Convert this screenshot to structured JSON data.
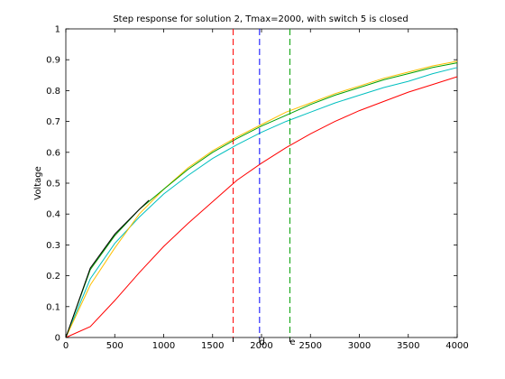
{
  "chart_data": {
    "type": "line",
    "title": "Step response for solution 2, Tmax=2000, with switch 5 is closed",
    "xlabel": "",
    "ylabel": "Voltage",
    "xlim": [
      0,
      4000
    ],
    "ylim": [
      0,
      1
    ],
    "grid": false,
    "x_ticks": [
      0,
      500,
      1000,
      1500,
      2000,
      2500,
      3000,
      3500,
      4000
    ],
    "y_ticks": [
      0,
      0.1,
      0.2,
      0.3,
      0.4,
      0.5,
      0.6,
      0.7,
      0.8,
      0.9,
      1
    ],
    "series": [
      {
        "color": "#ff0000",
        "x": [
          0,
          250,
          500,
          750,
          1000,
          1250,
          1500,
          1750,
          2000,
          2250,
          2500,
          2750,
          3000,
          3250,
          3500,
          3750,
          4000
        ],
        "y": [
          0,
          0.035,
          0.12,
          0.21,
          0.295,
          0.37,
          0.44,
          0.51,
          0.565,
          0.615,
          0.66,
          0.7,
          0.735,
          0.765,
          0.795,
          0.82,
          0.845
        ]
      },
      {
        "color": "#00bfbf",
        "x": [
          0,
          250,
          500,
          750,
          1000,
          1250,
          1500,
          1750,
          2000,
          2250,
          2500,
          2750,
          3000,
          3250,
          3500,
          3750,
          4000
        ],
        "y": [
          0,
          0.19,
          0.305,
          0.39,
          0.465,
          0.525,
          0.58,
          0.625,
          0.665,
          0.7,
          0.73,
          0.76,
          0.785,
          0.81,
          0.83,
          0.855,
          0.875
        ]
      },
      {
        "color": "#ffbf00",
        "x": [
          0,
          250,
          500,
          750,
          1000,
          1250,
          1500,
          1750,
          2000,
          2250,
          2500,
          2750,
          3000,
          3250,
          3500,
          3750,
          4000
        ],
        "y": [
          0,
          0.17,
          0.29,
          0.4,
          0.48,
          0.55,
          0.605,
          0.65,
          0.69,
          0.73,
          0.76,
          0.79,
          0.815,
          0.84,
          0.86,
          0.88,
          0.895
        ]
      },
      {
        "color": "#00a000",
        "x": [
          0,
          250,
          500,
          750,
          1000,
          1250,
          1500,
          1750,
          2000,
          2250,
          2500,
          2750,
          3000,
          3250,
          3500,
          3750,
          4000
        ],
        "y": [
          0,
          0.22,
          0.33,
          0.415,
          0.48,
          0.545,
          0.6,
          0.645,
          0.685,
          0.72,
          0.755,
          0.785,
          0.81,
          0.835,
          0.855,
          0.875,
          0.89
        ]
      },
      {
        "color": "#000000",
        "x": [
          0,
          250,
          500,
          750,
          850
        ],
        "y": [
          0,
          0.225,
          0.335,
          0.415,
          0.445
        ]
      }
    ],
    "vlines": [
      {
        "x": 1710,
        "color": "#ff0000"
      },
      {
        "x": 1980,
        "color": "#0000ff"
      },
      {
        "x": 2290,
        "color": "#00a000"
      }
    ],
    "markers": [
      {
        "x": 1710,
        "label": ""
      },
      {
        "x": 1980,
        "label": "d"
      },
      {
        "x": 2290,
        "label": "e"
      }
    ]
  }
}
